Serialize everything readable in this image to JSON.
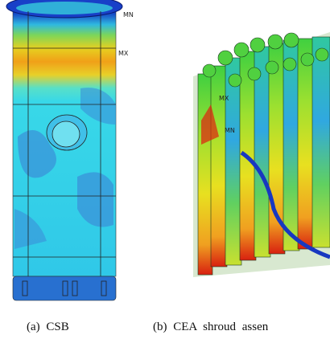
{
  "figure": {
    "left": {
      "labels": [
        "MN",
        "MX"
      ],
      "caption": "(a) CSB"
    },
    "right": {
      "labels": [
        "MX",
        "MN"
      ],
      "caption": "(b) CEA shroud assen"
    }
  }
}
